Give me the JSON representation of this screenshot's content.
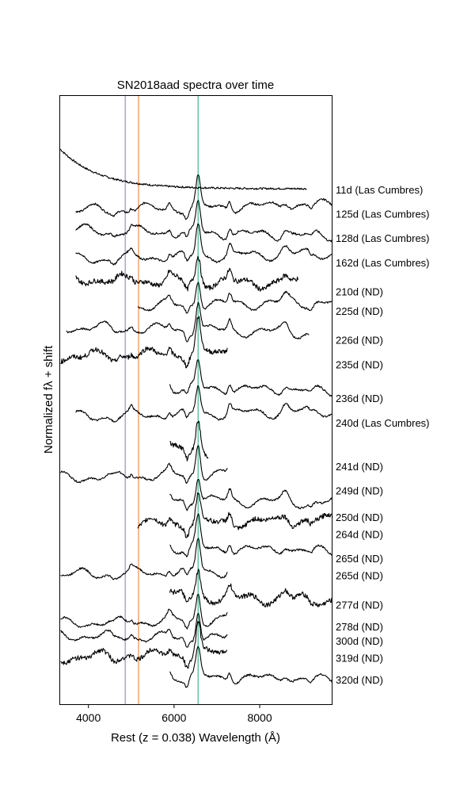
{
  "chart_data": {
    "type": "line",
    "title": "SN2018aad spectra over time",
    "xlabel": "Rest (z = 0.038) Wavelength (Å)",
    "ylabel": "Normalized fλ + shift",
    "xlim": [
      3340,
      9700
    ],
    "xticks": [
      4000,
      6000,
      8000
    ],
    "xtick_labels": [
      "4000",
      "6000",
      "8000"
    ],
    "grid": false,
    "reference_lines": [
      {
        "x": 4861,
        "color": "#b3a7d8"
      },
      {
        "x": 5170,
        "color": "#f0a878"
      },
      {
        "x": 6563,
        "color": "#62c8a0"
      }
    ],
    "series": [
      {
        "label": "11d (Las Cumbres)",
        "xmin": 3340,
        "xmax": 9100,
        "offset": 0,
        "label_offset": 0
      },
      {
        "label": "125d (Las Cumbres)",
        "xmin": 3700,
        "xmax": 9700,
        "offset": 1,
        "label_offset": 1
      },
      {
        "label": "128d (Las Cumbres)",
        "xmin": 3700,
        "xmax": 9700,
        "offset": 2,
        "label_offset": 2
      },
      {
        "label": "162d (Las Cumbres)",
        "xmin": 3700,
        "xmax": 9700,
        "offset": 3,
        "label_offset": 3
      },
      {
        "label": "210d (ND)",
        "xmin": 3700,
        "xmax": 8900,
        "offset": 4,
        "label_offset": 4.2
      },
      {
        "label": "225d (ND)",
        "xmin": 5150,
        "xmax": 9700,
        "offset": 5,
        "label_offset": 5
      },
      {
        "label": "226d (ND)",
        "xmin": 3480,
        "xmax": 9150,
        "offset": 6,
        "label_offset": 6.2
      },
      {
        "label": "235d (ND)",
        "xmin": 3350,
        "xmax": 7250,
        "offset": 7,
        "label_offset": 7.2
      },
      {
        "label": "236d (ND)",
        "xmin": 5900,
        "xmax": 9700,
        "offset": 8.4,
        "label_offset": 8.6
      },
      {
        "label": "240d (Las Cumbres)",
        "xmin": 3700,
        "xmax": 9700,
        "offset": 9.5,
        "label_offset": 9.6
      },
      {
        "label": "241d (ND)",
        "xmin": 5900,
        "xmax": 6800,
        "offset": 11,
        "label_offset": 11.4
      },
      {
        "label": "249d (ND)",
        "xmin": 3350,
        "xmax": 7250,
        "offset": 12,
        "label_offset": 12.4
      },
      {
        "label": "250d (ND)",
        "xmin": 5900,
        "xmax": 9700,
        "offset": 13,
        "label_offset": 13.5
      },
      {
        "label": "264d (ND)",
        "xmin": 5150,
        "xmax": 9700,
        "offset": 14,
        "label_offset": 14.2
      },
      {
        "label": "265d (ND)",
        "xmin": 5900,
        "xmax": 9700,
        "offset": 15,
        "label_offset": 15.2
      },
      {
        "label": "265d (ND)",
        "xmin": 3350,
        "xmax": 7250,
        "offset": 16,
        "label_offset": 15.9
      },
      {
        "label": "277d (ND)",
        "xmin": 5900,
        "xmax": 9700,
        "offset": 17,
        "label_offset": 17.1
      },
      {
        "label": "278d (ND)",
        "xmin": 3350,
        "xmax": 7250,
        "offset": 18,
        "label_offset": 18
      },
      {
        "label": "300d (ND)",
        "xmin": 3350,
        "xmax": 7250,
        "offset": 18.7,
        "label_offset": 18.6
      },
      {
        "label": "319d (ND)",
        "xmin": 3350,
        "xmax": 7250,
        "offset": 19.4,
        "label_offset": 19.3
      },
      {
        "label": "320d (ND)",
        "xmin": 5900,
        "xmax": 9700,
        "offset": 20.3,
        "label_offset": 20.2
      }
    ]
  }
}
